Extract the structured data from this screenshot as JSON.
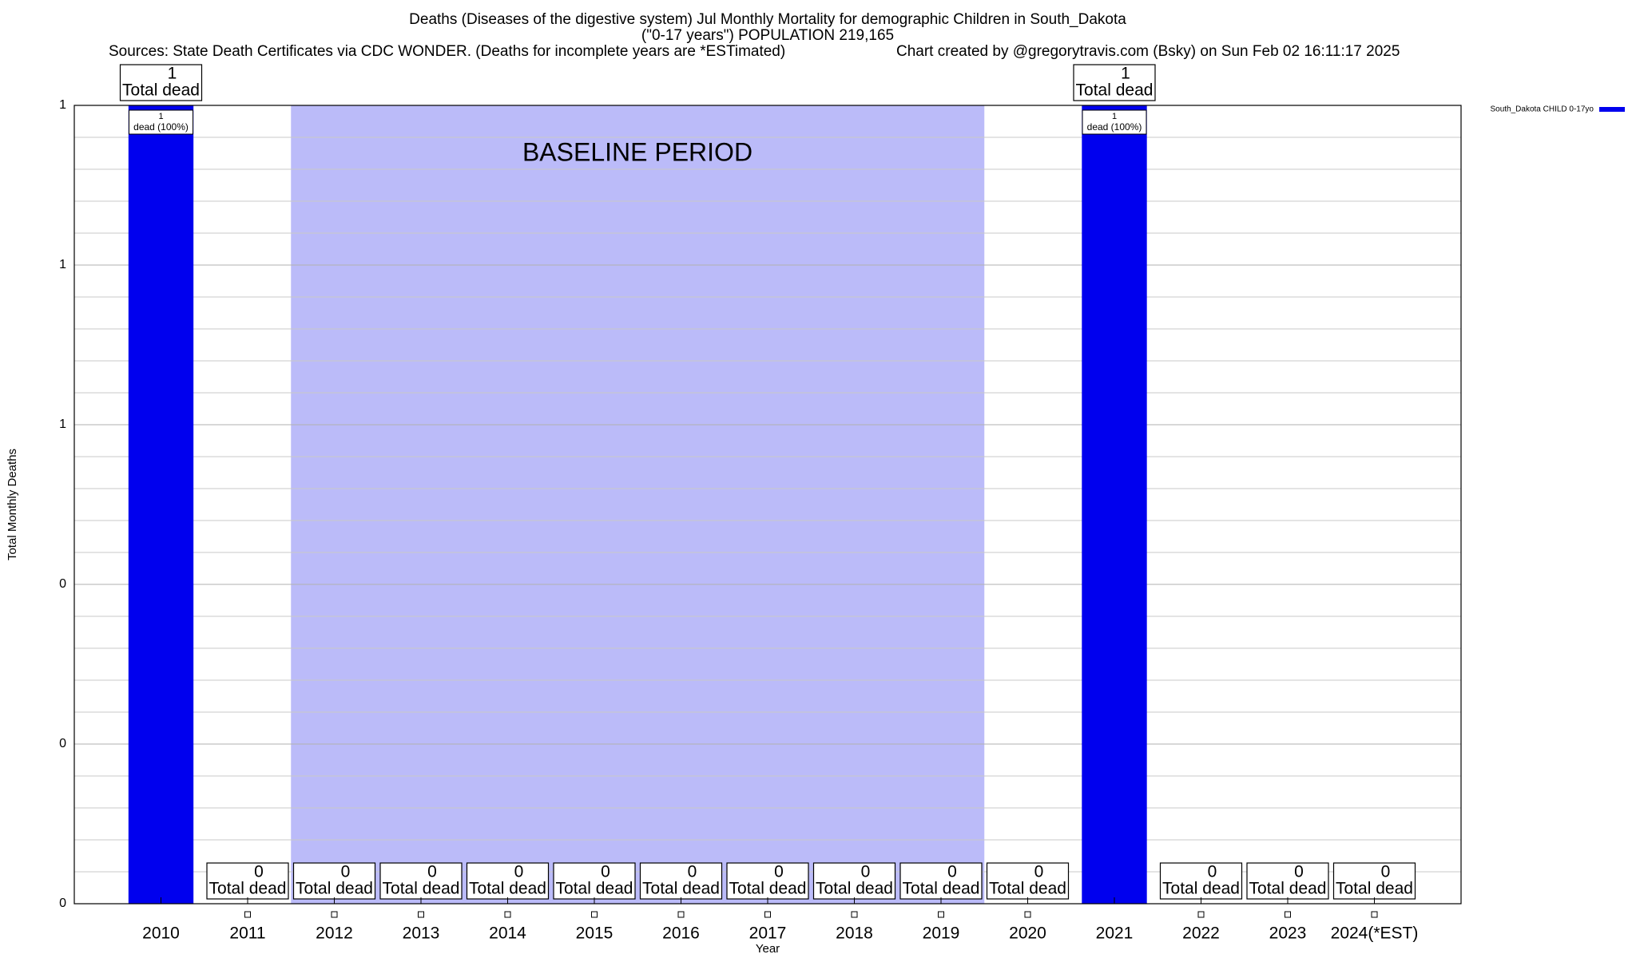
{
  "chart_data": {
    "type": "bar",
    "title": "Deaths (Diseases of the digestive system) Jul Monthly Mortality for demographic Children in South_Dakota",
    "subtitle": "(\"0-17 years\") POPULATION 219,165",
    "sources": "Sources: State Death Certificates via CDC WONDER. (Deaths for incomplete years are *ESTimated)",
    "credit": "Chart created by @gregorytravis.com (Bsky) on Sun Feb 02 16:11:17 2025",
    "xlabel": "Year",
    "ylabel": "Total Monthly Deaths",
    "categories": [
      "2010",
      "2011",
      "2012",
      "2013",
      "2014",
      "2015",
      "2016",
      "2017",
      "2018",
      "2019",
      "2020",
      "2021",
      "2022",
      "2023",
      "2024(*EST)"
    ],
    "series": [
      {
        "name": "South_Dakota CHILD 0-17yo",
        "color": "#0000ee",
        "values": [
          1,
          0,
          0,
          0,
          0,
          0,
          0,
          0,
          0,
          0,
          0,
          1,
          0,
          0,
          0
        ]
      }
    ],
    "total_label": "Total dead",
    "share_label": "dead (100%)",
    "baseline": {
      "label": "BASELINE PERIOD",
      "from": "2012",
      "to": "2019",
      "color": "#bbbbf9"
    },
    "ylim": [
      0,
      1
    ],
    "yticks": [
      0,
      {
        "value": 0.2,
        "label": "0"
      },
      {
        "value": 0.4,
        "label": "0"
      },
      {
        "value": 0.6,
        "label": "1"
      },
      {
        "value": 0.8,
        "label": "1"
      },
      1
    ],
    "grid": true,
    "legend": "top-right"
  }
}
